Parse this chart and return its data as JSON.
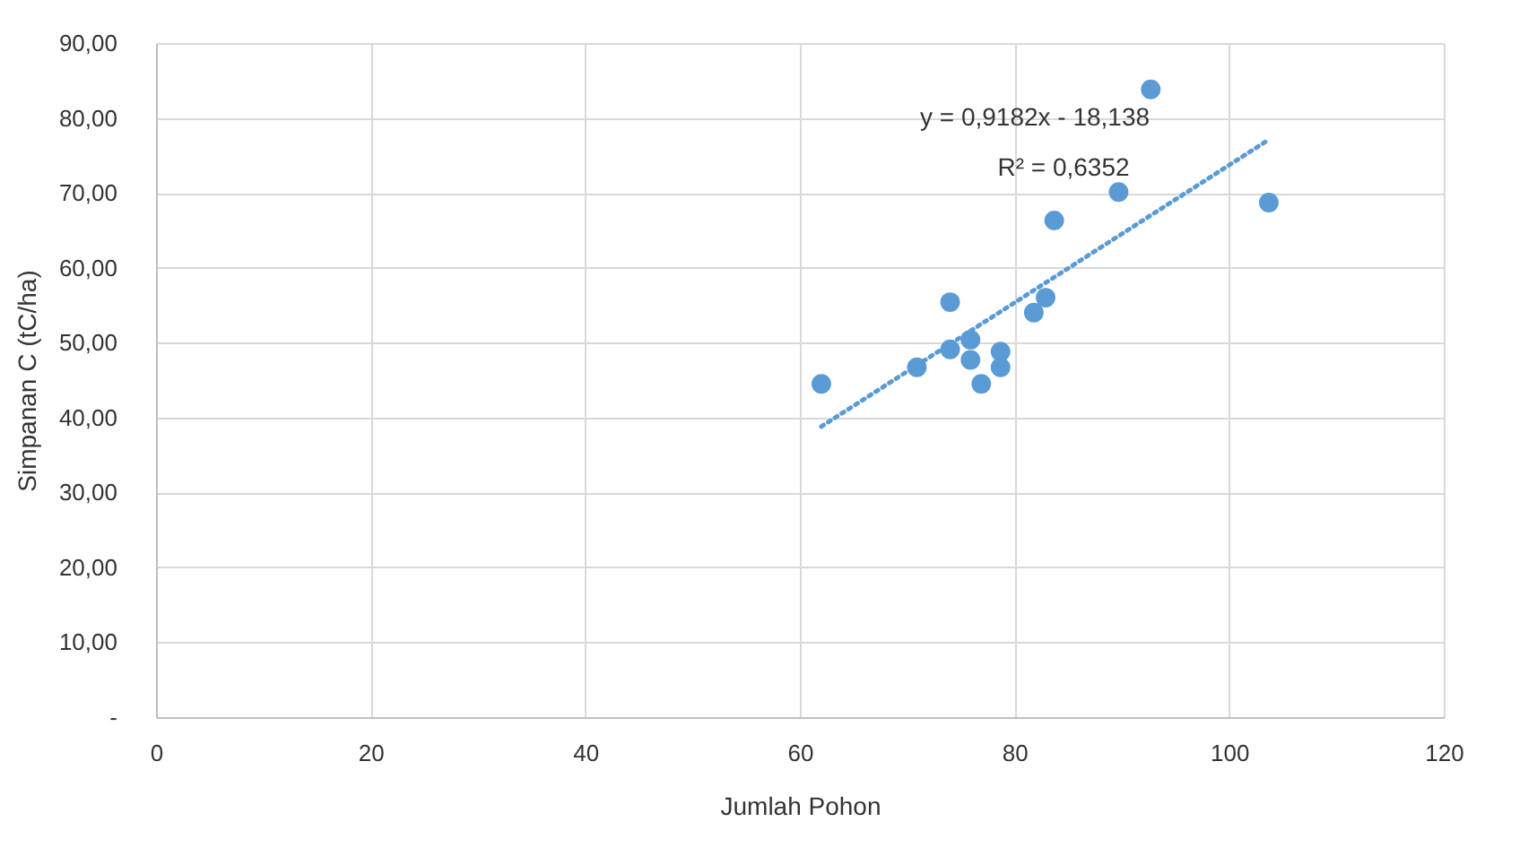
{
  "chart_data": {
    "type": "scatter",
    "xlabel": "Jumlah Pohon",
    "ylabel": "Simpanan C (tC/ha)",
    "x": [
      62.0,
      70.9,
      74.0,
      74.0,
      75.9,
      75.9,
      76.9,
      78.7,
      78.7,
      81.8,
      82.9,
      83.7,
      89.7,
      92.7,
      103.7
    ],
    "series": [
      {
        "color": "#5b9bd5",
        "values": [
          44.5,
          46.7,
          55.4,
          49.1,
          50.4,
          47.7,
          44.5,
          48.8,
          46.7,
          54.0,
          56.0,
          66.3,
          70.1,
          83.8,
          68.7
        ],
        "marker": "circle"
      },
      {
        "type": "line",
        "color": "#5b9bd5",
        "line_style": "dotted",
        "x": [
          62.0,
          103.7
        ],
        "values": [
          38.8,
          77.1
        ]
      }
    ],
    "xlim": [
      0,
      120
    ],
    "xticks": [
      0,
      20,
      40,
      60,
      80,
      100,
      120
    ],
    "ylim": [
      0,
      90
    ],
    "yticks": [
      {
        "value": 0,
        "label": "-"
      },
      {
        "value": 10,
        "label": "10,00"
      },
      {
        "value": 20,
        "label": "20,00"
      },
      {
        "value": 30,
        "label": "30,00"
      },
      {
        "value": 40,
        "label": "40,00"
      },
      {
        "value": 50,
        "label": "50,00"
      },
      {
        "value": 60,
        "label": "60,00"
      },
      {
        "value": 70,
        "label": "70,00"
      },
      {
        "value": 80,
        "label": "80,00"
      },
      {
        "value": 90,
        "label": "90,00"
      }
    ],
    "annotations": [
      "y = 0,9182x - 18,138",
      "R² = 0,6352"
    ],
    "grid": true
  }
}
